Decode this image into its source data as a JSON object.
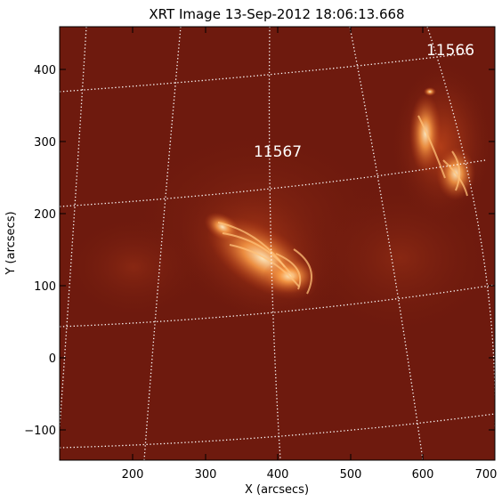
{
  "figure": {
    "title": "XRT Image 13-Sep-2012 18:06:13.668",
    "xlabel": "X (arcsecs)",
    "ylabel": "Y (arcsecs)",
    "x_ticks": [
      "200",
      "300",
      "400",
      "500",
      "600",
      "700"
    ],
    "y_ticks": [
      "400",
      "300",
      "200",
      "100",
      "0",
      "−100"
    ],
    "active_regions": [
      "11567",
      "11566"
    ]
  },
  "colors": {
    "background": "#6e1a0e",
    "emission": "#ff9a4a",
    "grid": "#ffffff"
  }
}
